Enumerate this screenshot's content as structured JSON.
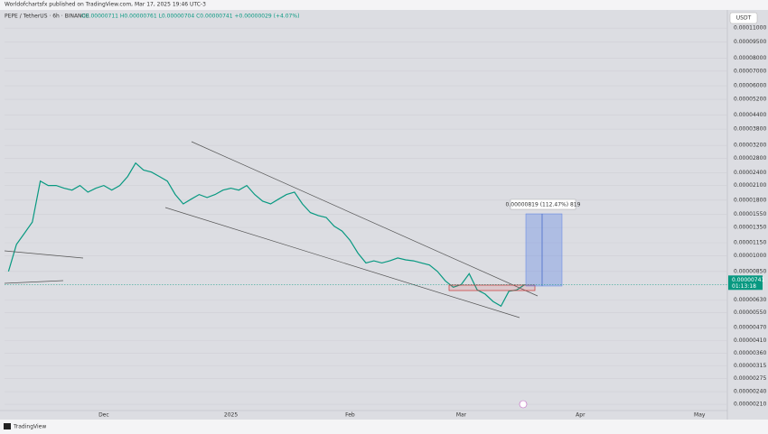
{
  "chart_data": {
    "type": "line",
    "subtitle": "Worldofchartsfx published on TradingView.com, Mar 17, 2025 19:46 UTC-3",
    "title": "PEPE / TetherUS · 6h · BINANCE",
    "ohlc_text": "O0.00000711 H0.00000761 L0.00000704 C0.00000741 +0.00000029 (+4.07%)",
    "currency": "USDT",
    "brand": "TradingView",
    "measure_label": "0.00000819 (112.47%) 819",
    "countdown": "01:13:18",
    "current_price": {
      "value": 7.41e-06,
      "label": "0.00000741"
    },
    "log_scale": true,
    "grid": true,
    "color": "#089981",
    "ylim": [
      1.84e-06,
      0.000132
    ],
    "yticks": [
      {
        "value": 0.00011,
        "label": "0.00011000"
      },
      {
        "value": 9.5e-05,
        "label": "0.00009500"
      },
      {
        "value": 8e-05,
        "label": "0.00008000"
      },
      {
        "value": 7e-05,
        "label": "0.00007000"
      },
      {
        "value": 6e-05,
        "label": "0.00006000"
      },
      {
        "value": 5.2e-05,
        "label": "0.00005200"
      },
      {
        "value": 4.4e-05,
        "label": "0.00004400"
      },
      {
        "value": 3.8e-05,
        "label": "0.00003800"
      },
      {
        "value": 3.2e-05,
        "label": "0.00003200"
      },
      {
        "value": 2.8e-05,
        "label": "0.00002800"
      },
      {
        "value": 2.4e-05,
        "label": "0.00002400"
      },
      {
        "value": 2.1e-05,
        "label": "0.00002100"
      },
      {
        "value": 1.8e-05,
        "label": "0.00001800"
      },
      {
        "value": 1.55e-05,
        "label": "0.00001550"
      },
      {
        "value": 1.35e-05,
        "label": "0.00001350"
      },
      {
        "value": 1.15e-05,
        "label": "0.00001150"
      },
      {
        "value": 1e-05,
        "label": "0.00001000"
      },
      {
        "value": 8.5e-06,
        "label": "0.00000850"
      },
      {
        "value": 6.3e-06,
        "label": "0.00000630"
      },
      {
        "value": 5.5e-06,
        "label": "0.00000550"
      },
      {
        "value": 4.7e-06,
        "label": "0.00000470"
      },
      {
        "value": 4.1e-06,
        "label": "0.00000410"
      },
      {
        "value": 3.6e-06,
        "label": "0.00000360"
      },
      {
        "value": 3.15e-06,
        "label": "0.00000315"
      },
      {
        "value": 2.75e-06,
        "label": "0.00000275"
      },
      {
        "value": 2.4e-06,
        "label": "0.00000240"
      },
      {
        "value": 2.1e-06,
        "label": "0.00000210"
      }
    ],
    "categories": [
      null,
      null,
      null,
      null,
      null,
      null,
      null,
      null,
      null,
      null,
      null,
      null,
      "Dec",
      null,
      null,
      null,
      null,
      null,
      null,
      null,
      null,
      null,
      null,
      null,
      null,
      null,
      null,
      null,
      "2025",
      null,
      null,
      null,
      null,
      null,
      null,
      null,
      null,
      null,
      null,
      null,
      null,
      null,
      null,
      "Feb",
      null,
      null,
      null,
      null,
      null,
      null,
      null,
      null,
      null,
      null,
      null,
      null,
      null,
      "Mar",
      null,
      null,
      null,
      null,
      null,
      null,
      null,
      null,
      null,
      null,
      null,
      null,
      null,
      null,
      "Apr",
      null,
      null,
      null,
      null,
      null,
      null,
      null,
      null,
      null,
      null,
      null,
      null,
      null,
      null,
      "May",
      null,
      null,
      null
    ],
    "values": [
      8.5e-06,
      1.13e-05,
      1.27e-05,
      1.43e-05,
      2.2e-05,
      2.1e-05,
      2.1e-05,
      2.04e-05,
      2e-05,
      2.1e-05,
      1.96e-05,
      2.04e-05,
      2.1e-05,
      2e-05,
      2.1e-05,
      2.31e-05,
      2.66e-05,
      2.47e-05,
      2.42e-05,
      2.31e-05,
      2.2e-05,
      1.91e-05,
      1.73e-05,
      1.82e-05,
      1.91e-05,
      1.85e-05,
      1.91e-05,
      2e-05,
      2.04e-05,
      2e-05,
      2.1e-05,
      1.91e-05,
      1.78e-05,
      1.73e-05,
      1.82e-05,
      1.91e-05,
      1.96e-05,
      1.73e-05,
      1.58e-05,
      1.53e-05,
      1.5e-05,
      1.37e-05,
      1.3e-05,
      1.18e-05,
      1.03e-05,
      9.3e-06,
      9.5e-06,
      9.3e-06,
      9.5e-06,
      9.8e-06,
      9.6e-06,
      9.5e-06,
      9.3e-06,
      9.1e-06,
      8.5e-06,
      7.7e-06,
      7.2e-06,
      7.4e-06,
      8.3e-06,
      7e-06,
      6.7e-06,
      6.2e-06,
      5.9e-06,
      6.9e-06,
      7e-06,
      7.4e-06,
      null,
      null,
      null,
      null,
      null,
      null,
      null,
      null,
      null,
      null,
      null,
      null,
      null,
      null,
      null,
      null,
      null,
      null,
      null,
      null,
      null,
      null,
      null,
      null,
      null
    ]
  }
}
